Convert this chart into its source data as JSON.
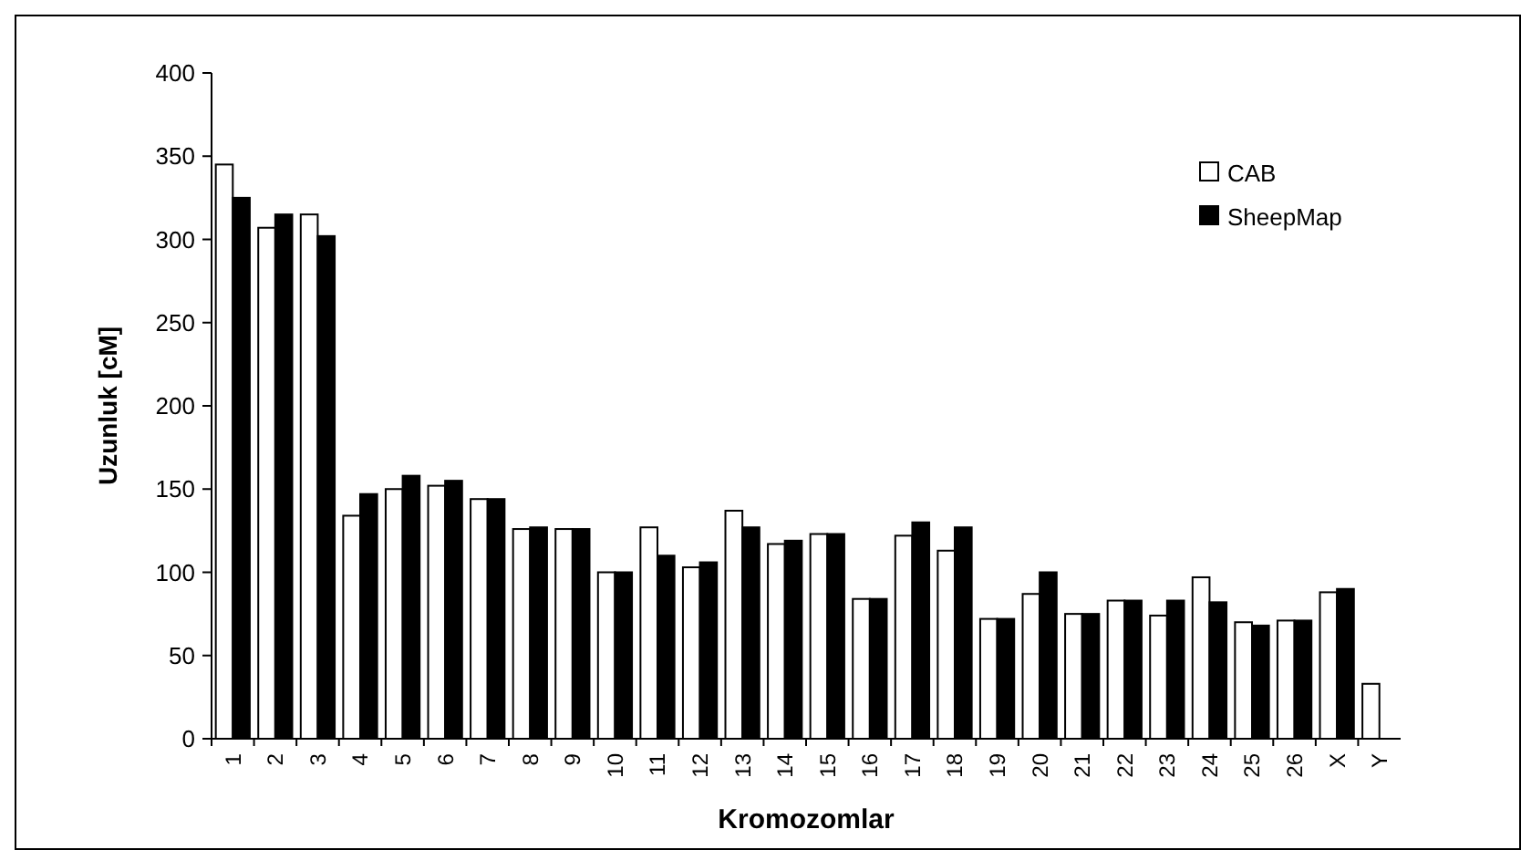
{
  "chart_data": {
    "type": "bar",
    "xlabel": "Kromozomlar",
    "ylabel": "Uzunluk [cM]",
    "categories": [
      "1",
      "2",
      "3",
      "4",
      "5",
      "6",
      "7",
      "8",
      "9",
      "10",
      "11",
      "12",
      "13",
      "14",
      "15",
      "16",
      "17",
      "18",
      "19",
      "20",
      "21",
      "22",
      "23",
      "24",
      "25",
      "26",
      "X",
      "Y"
    ],
    "series": [
      {
        "name": "CAB",
        "color": "#ffffff",
        "values": [
          345,
          307,
          315,
          134,
          150,
          152,
          144,
          126,
          126,
          100,
          127,
          103,
          137,
          117,
          123,
          84,
          122,
          113,
          72,
          87,
          75,
          83,
          74,
          97,
          70,
          71,
          88,
          33
        ]
      },
      {
        "name": "SheepMap",
        "color": "#000000",
        "values": [
          325,
          315,
          302,
          147,
          158,
          155,
          144,
          127,
          126,
          100,
          110,
          106,
          127,
          119,
          123,
          84,
          130,
          127,
          72,
          100,
          75,
          83,
          83,
          82,
          68,
          71,
          90,
          null
        ]
      }
    ],
    "ylim": [
      0,
      400
    ],
    "yticks": [
      0,
      50,
      100,
      150,
      200,
      250,
      300,
      350,
      400
    ],
    "grid": false,
    "legend": "top right"
  }
}
